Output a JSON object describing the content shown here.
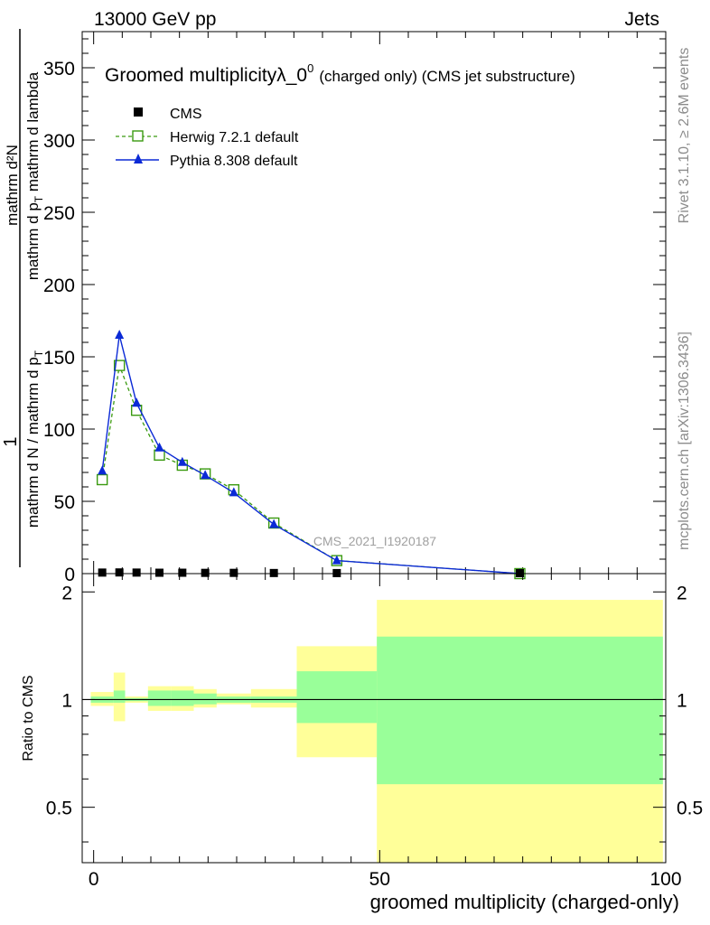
{
  "header": {
    "left": "13000 GeV pp",
    "right": "Jets"
  },
  "side_labels": {
    "rivet": "Rivet 3.1.10, ≥ 2.6M events",
    "mcplots": "mcplots.cern.ch [arXiv:1306.3436]"
  },
  "watermark": "CMS_2021_I1920187",
  "chart_data": [
    {
      "type": "line",
      "title": "Groomed multiplicity",
      "title_lambda": "λ_0",
      "title_sup": "0",
      "title_suffix": "(charged only) (CMS jet substructure)",
      "ylabel_parts": {
        "one": "1",
        "denom": "mathrm d N / mathrm d p",
        "sub": "T",
        "num": "mathrm d²N",
        "den2": "mathrm d p",
        "den2_sub": "T",
        "den2_tail": " mathrm d lambda"
      },
      "xlim": [
        -2,
        100
      ],
      "ylim": [
        0,
        375
      ],
      "yticks": [
        0,
        50,
        100,
        150,
        200,
        250,
        300,
        350
      ],
      "legend": [
        "CMS",
        "Herwig 7.2.1 default",
        "Pythia 8.308 default"
      ],
      "legend_placement": "top-left",
      "series": [
        {
          "name": "CMS",
          "color": "#000000",
          "x": [
            1.5,
            4.5,
            7.5,
            11.5,
            15.5,
            19.5,
            24.5,
            31.5,
            42.5,
            74.5
          ],
          "values": [
            0.4,
            0.5,
            0.4,
            0.3,
            0.3,
            0.2,
            0.2,
            0.1,
            0.05,
            0.01
          ]
        },
        {
          "name": "Herwig 7.2.1 default",
          "color": "#3a9a10",
          "x": [
            1.5,
            4.5,
            7.5,
            11.5,
            15.5,
            19.5,
            24.5,
            31.5,
            42.5,
            74.5
          ],
          "values": [
            65,
            144,
            113,
            82,
            75,
            69,
            58,
            35,
            9,
            0
          ]
        },
        {
          "name": "Pythia 8.308 default",
          "color": "#0b2ad6",
          "x": [
            1.5,
            4.5,
            7.5,
            11.5,
            15.5,
            19.5,
            24.5,
            31.5,
            42.5,
            74.5
          ],
          "values": [
            71,
            165,
            118,
            87,
            77,
            68,
            56,
            34,
            9,
            0
          ]
        }
      ]
    },
    {
      "type": "area",
      "ylabel": "Ratio to CMS",
      "xlabel": "groomed multiplicity (charged-only)",
      "xlim": [
        -2,
        100
      ],
      "ylim": [
        0.35,
        2.25
      ],
      "yticks": [
        0.5,
        1,
        2
      ],
      "xticks": [
        0,
        50,
        100
      ],
      "reference": 1,
      "bands": [
        {
          "x": [
            -0.5,
            3.5
          ],
          "outer": [
            0.96,
            1.05
          ],
          "inner": [
            0.98,
            1.02
          ]
        },
        {
          "x": [
            3.5,
            5.5
          ],
          "outer": [
            0.87,
            1.19
          ],
          "inner": [
            0.98,
            1.06
          ]
        },
        {
          "x": [
            5.5,
            9.5
          ],
          "outer": [
            0.98,
            1.02
          ],
          "inner": [
            0.99,
            1.01
          ]
        },
        {
          "x": [
            9.5,
            13.5
          ],
          "outer": [
            0.93,
            1.09
          ],
          "inner": [
            0.96,
            1.06
          ]
        },
        {
          "x": [
            13.5,
            17.5
          ],
          "outer": [
            0.93,
            1.09
          ],
          "inner": [
            0.96,
            1.06
          ]
        },
        {
          "x": [
            17.5,
            21.5
          ],
          "outer": [
            0.95,
            1.07
          ],
          "inner": [
            0.97,
            1.04
          ]
        },
        {
          "x": [
            21.5,
            27.5
          ],
          "outer": [
            0.97,
            1.04
          ],
          "inner": [
            0.98,
            1.02
          ]
        },
        {
          "x": [
            27.5,
            35.5
          ],
          "outer": [
            0.95,
            1.07
          ],
          "inner": [
            0.98,
            1.02
          ]
        },
        {
          "x": [
            35.5,
            49.5
          ],
          "outer": [
            0.69,
            1.41
          ],
          "inner": [
            0.86,
            1.2
          ]
        },
        {
          "x": [
            49.5,
            99.5
          ],
          "outer": [
            0.35,
            1.9
          ],
          "inner": [
            0.58,
            1.5
          ]
        }
      ]
    }
  ]
}
